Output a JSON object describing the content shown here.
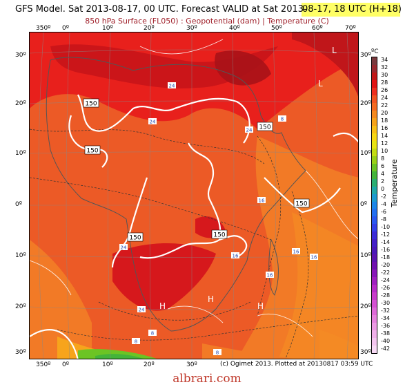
{
  "header": {
    "title_main": "GFS Model. Sat 2013-08-17, 00 UTC. Forecast VALID at Sat 2013-",
    "title_valid": "08-17, 18 UTC (H+18)",
    "subtitle": "850 hPa Surface (FL050) : Geopotential (dam) | Temperature (C)"
  },
  "map": {
    "lon_ticks_top": [
      "350º",
      "0º",
      "10º",
      "20º",
      "30º",
      "40º",
      "50º",
      "60º",
      "70º"
    ],
    "lon_ticks_bottom": [
      "350º",
      "0º",
      "10º",
      "20º",
      "30º",
      "40º",
      "50º",
      "60º",
      "70º"
    ],
    "lat_ticks_left": [
      "30º",
      "20º",
      "10º",
      "0º",
      "10º",
      "20º",
      "30º"
    ],
    "lat_ticks_right": [
      "30º",
      "20º",
      "10º",
      "0º",
      "10º",
      "20º",
      "30º"
    ],
    "pressure_labels": [
      "L",
      "L",
      "H",
      "H",
      "H"
    ],
    "geopotential_labels": [
      "150",
      "150",
      "150",
      "150",
      "150",
      "150"
    ],
    "temperature_labels": [
      "24",
      "24",
      "24",
      "24",
      "24",
      "16",
      "16",
      "16",
      "16",
      "16",
      "8",
      "8",
      "8",
      "8"
    ]
  },
  "colorbar": {
    "unit": "ºC",
    "title": "Temperature",
    "labels": [
      "34",
      "32",
      "30",
      "28",
      "26",
      "24",
      "22",
      "20",
      "18",
      "16",
      "14",
      "12",
      "10",
      "8",
      "6",
      "4",
      "2",
      "0",
      "-2",
      "-4",
      "-6",
      "-8",
      "-10",
      "-12",
      "-14",
      "-16",
      "-18",
      "-20",
      "-22",
      "-24",
      "-26",
      "-28",
      "-30",
      "-32",
      "-34",
      "-36",
      "-38",
      "-40",
      "-42"
    ],
    "colors": [
      "#7a3a3e",
      "#9a2a30",
      "#c21818",
      "#e01515",
      "#ee3020",
      "#f25522",
      "#f46a22",
      "#f58a20",
      "#f7a41c",
      "#f9c018",
      "#f8d814",
      "#e8e414",
      "#c4dc14",
      "#9ad018",
      "#6cc424",
      "#44b43a",
      "#2cae72",
      "#20a8a8",
      "#1c9ad0",
      "#1c86e8",
      "#2470f0",
      "#2c58f0",
      "#3440e8",
      "#3c2cd8",
      "#4420c8",
      "#4c18b8",
      "#5c14b0",
      "#7010b0",
      "#8818b8",
      "#a020c0",
      "#b82cc8",
      "#c83ccc",
      "#d452d2",
      "#de6ad8",
      "#e682de",
      "#ec9ae4",
      "#f0b0ea",
      "#f4c6f0",
      "#f8daf6"
    ]
  },
  "credit": "(c) Ogimet 2013. Plotted at 20130817 03:59 UTC",
  "watermark": "albrari.com"
}
